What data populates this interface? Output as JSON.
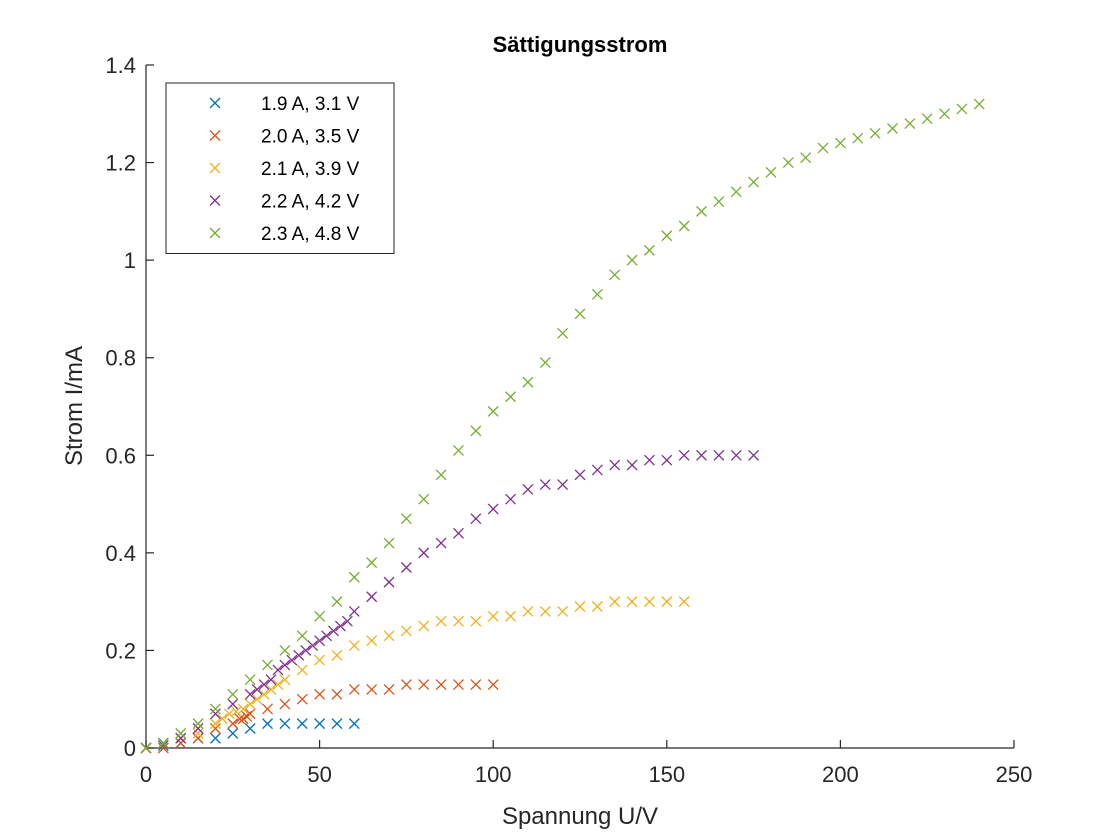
{
  "chart_data": {
    "type": "scatter",
    "title": "Sättigungsstrom",
    "xlabel": "Spannung U/V",
    "ylabel": "Strom I/mA",
    "xlim": [
      0,
      250
    ],
    "ylim": [
      0,
      1.4
    ],
    "xticks": [
      "0",
      "50",
      "100",
      "150",
      "200",
      "250"
    ],
    "yticks": [
      "0",
      "0.2",
      "0.4",
      "0.6",
      "0.8",
      "1",
      "1.2",
      "1.4"
    ],
    "grid": false,
    "marker": "x",
    "legend_position": "top-left",
    "series": [
      {
        "name": "1.9 A, 3.1 V",
        "color": "#0072BD",
        "x": [
          0,
          5,
          10,
          15,
          20,
          25,
          30,
          35,
          40,
          45,
          50,
          55,
          60
        ],
        "y": [
          0,
          0.005,
          0.01,
          0.02,
          0.02,
          0.03,
          0.04,
          0.05,
          0.05,
          0.05,
          0.05,
          0.05,
          0.05
        ]
      },
      {
        "name": "2.0 A, 3.5 V",
        "color": "#D95319",
        "x": [
          0,
          5,
          10,
          15,
          20,
          25,
          27,
          28,
          29,
          30,
          35,
          40,
          45,
          50,
          55,
          60,
          65,
          70,
          75,
          80,
          85,
          90,
          95,
          100
        ],
        "y": [
          0,
          0,
          0.01,
          0.02,
          0.04,
          0.05,
          0.06,
          0.06,
          0.065,
          0.07,
          0.08,
          0.09,
          0.1,
          0.11,
          0.11,
          0.12,
          0.12,
          0.12,
          0.13,
          0.13,
          0.13,
          0.13,
          0.13,
          0.13
        ]
      },
      {
        "name": "2.1 A, 3.9 V",
        "color": "#EDB120",
        "x": [
          0,
          5,
          10,
          15,
          20,
          22,
          24,
          26,
          28,
          30,
          32,
          34,
          36,
          38,
          40,
          45,
          50,
          55,
          60,
          65,
          70,
          75,
          80,
          85,
          90,
          95,
          100,
          105,
          110,
          115,
          120,
          125,
          130,
          135,
          140,
          145,
          150,
          155
        ],
        "y": [
          0,
          0.01,
          0.02,
          0.03,
          0.05,
          0.06,
          0.07,
          0.075,
          0.08,
          0.09,
          0.1,
          0.11,
          0.12,
          0.13,
          0.14,
          0.16,
          0.18,
          0.19,
          0.21,
          0.22,
          0.23,
          0.24,
          0.25,
          0.26,
          0.26,
          0.26,
          0.27,
          0.27,
          0.28,
          0.28,
          0.28,
          0.29,
          0.29,
          0.3,
          0.3,
          0.3,
          0.3,
          0.3
        ]
      },
      {
        "name": "2.2 A, 4.2 V",
        "color": "#7E2F8E",
        "x": [
          0,
          5,
          10,
          15,
          20,
          25,
          30,
          32,
          34,
          36,
          38,
          40,
          42,
          44,
          46,
          48,
          50,
          52,
          54,
          56,
          58,
          60,
          65,
          70,
          75,
          80,
          85,
          90,
          95,
          100,
          105,
          110,
          115,
          120,
          125,
          130,
          135,
          140,
          145,
          150,
          155,
          160,
          165,
          170,
          175
        ],
        "y": [
          0,
          0.01,
          0.02,
          0.04,
          0.07,
          0.09,
          0.11,
          0.12,
          0.13,
          0.14,
          0.16,
          0.17,
          0.18,
          0.19,
          0.2,
          0.21,
          0.22,
          0.23,
          0.24,
          0.25,
          0.26,
          0.28,
          0.31,
          0.34,
          0.37,
          0.4,
          0.42,
          0.44,
          0.47,
          0.49,
          0.51,
          0.53,
          0.54,
          0.54,
          0.56,
          0.57,
          0.58,
          0.58,
          0.59,
          0.59,
          0.6,
          0.6,
          0.6,
          0.6,
          0.6
        ]
      },
      {
        "name": "2.3 A, 4.8 V",
        "color": "#77AC30",
        "x": [
          0,
          5,
          10,
          15,
          20,
          25,
          30,
          35,
          40,
          45,
          50,
          55,
          60,
          65,
          70,
          75,
          80,
          85,
          90,
          95,
          100,
          105,
          110,
          115,
          120,
          125,
          130,
          135,
          140,
          145,
          150,
          155,
          160,
          165,
          170,
          175,
          180,
          185,
          190,
          195,
          200,
          205,
          210,
          215,
          220,
          225,
          230,
          235,
          240
        ],
        "y": [
          0,
          0.01,
          0.03,
          0.05,
          0.08,
          0.11,
          0.14,
          0.17,
          0.2,
          0.23,
          0.27,
          0.3,
          0.35,
          0.38,
          0.42,
          0.47,
          0.51,
          0.56,
          0.61,
          0.65,
          0.69,
          0.72,
          0.75,
          0.79,
          0.85,
          0.89,
          0.93,
          0.97,
          1.0,
          1.02,
          1.05,
          1.07,
          1.1,
          1.12,
          1.14,
          1.16,
          1.18,
          1.2,
          1.21,
          1.23,
          1.24,
          1.25,
          1.26,
          1.27,
          1.28,
          1.29,
          1.3,
          1.31,
          1.32
        ]
      }
    ]
  }
}
